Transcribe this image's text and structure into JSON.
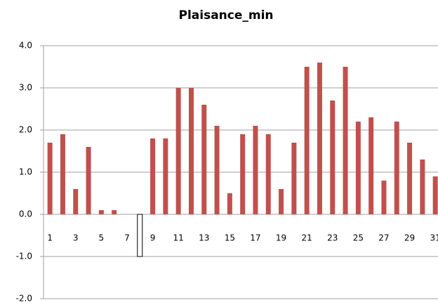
{
  "chart_data": {
    "type": "bar",
    "title": "Plaisance_min",
    "categories": [
      "1",
      null,
      "3",
      null,
      "5",
      null,
      "7",
      null,
      "9",
      null,
      "11",
      null,
      "13",
      null,
      "15",
      null,
      "17",
      null,
      "19",
      null,
      "21",
      null,
      "23",
      null,
      "25",
      null,
      "27",
      null,
      "29",
      null,
      "31"
    ],
    "values": [
      1.7,
      1.9,
      0.6,
      1.6,
      0.1,
      0.1,
      0,
      -1,
      1.8,
      1.8,
      3.0,
      3.0,
      2.6,
      2.1,
      0.5,
      1.9,
      2.1,
      1.9,
      0.6,
      1.7,
      3.5,
      3.6,
      2.7,
      3.5,
      2.2,
      2.3,
      0.8,
      2.2,
      1.7,
      1.3,
      0.9
    ],
    "color": "#c0504d",
    "colors": [
      "#c0504d",
      "#c0504d",
      "#c0504d",
      "#c0504d",
      "#c0504d",
      "#c0504d",
      "#c0504d",
      "#ffffff",
      "#c0504d",
      "#c0504d",
      "#c0504d",
      "#c0504d",
      "#c0504d",
      "#c0504d",
      "#c0504d",
      "#c0504d",
      "#c0504d",
      "#c0504d",
      "#c0504d",
      "#c0504d",
      "#c0504d",
      "#c0504d",
      "#c0504d",
      "#c0504d",
      "#c0504d",
      "#c0504d",
      "#c0504d",
      "#c0504d",
      "#c0504d",
      "#c0504d",
      "#c0504d"
    ],
    "edgecolors": [
      null,
      null,
      null,
      null,
      null,
      null,
      null,
      "#000000",
      null,
      null,
      null,
      null,
      null,
      null,
      null,
      null,
      null,
      null,
      null,
      null,
      null,
      null,
      null,
      null,
      null,
      null,
      null,
      null,
      null,
      null,
      null
    ],
    "ylim": [
      -2,
      4
    ],
    "yticks": [
      {
        "value": -2,
        "label": "-2.0"
      },
      {
        "value": -1,
        "label": "-1.0"
      },
      {
        "value": 0,
        "label": "0.0"
      },
      {
        "value": 1,
        "label": "1.0"
      },
      {
        "value": 2,
        "label": "2.0"
      },
      {
        "value": 3,
        "label": "3.0"
      },
      {
        "value": 4,
        "label": "4.0"
      }
    ],
    "grid": true
  }
}
